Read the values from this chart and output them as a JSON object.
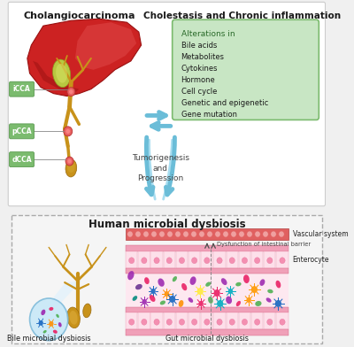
{
  "bg_color": "#f0f0f0",
  "top_left_title": "Cholangiocarcinoma",
  "top_right_title": "Cholestasis and Chronic inflammation",
  "bottom_title": "Human microbial dysbiosis",
  "center_text_line1": "Tumorigenesis",
  "center_text_line2": "and",
  "center_text_line3": "Progression",
  "cca_labels": [
    "iCCA",
    "pCCA",
    "dCCA"
  ],
  "cca_label_color": "#7bbb6e",
  "cca_label_edge": "#5a9a50",
  "alterations_box_color": "#c8e6c4",
  "alterations_box_edge": "#7bbb6e",
  "alterations_title": "Alterations in",
  "alterations_items": [
    "Bile acids",
    "Metabolites",
    "Cytokines",
    "Hormone",
    "Cell cycle",
    "Genetic and epigenetic",
    "Gene mutation"
  ],
  "vascular_label": "Vascular system",
  "barrier_label": "Dysfunction of intestinal barrier",
  "enterocyte_label": "Enterocyte",
  "bile_label": "Bile microbial dysbiosis",
  "gut_label": "Gut microbial dysbiosis",
  "arrow_color": "#6bbdd8",
  "dashed_box_color": "#aaaaaa",
  "vascular_bar_color": "#e06060",
  "vascular_dot_color": "#f0a0a0",
  "enterocyte_bar_color": "#f0a0b8",
  "enterocyte_cell_color": "#fde0ea",
  "enterocyte_nucleus_color": "#f48fb1",
  "blue_circle_color": "#c5e8f8",
  "blue_circle_edge": "#7ab8d8",
  "bile_tree_color": "#c8921a",
  "top_bg_color": "#ffffff",
  "bottom_bg_color": "#f5f5f5"
}
